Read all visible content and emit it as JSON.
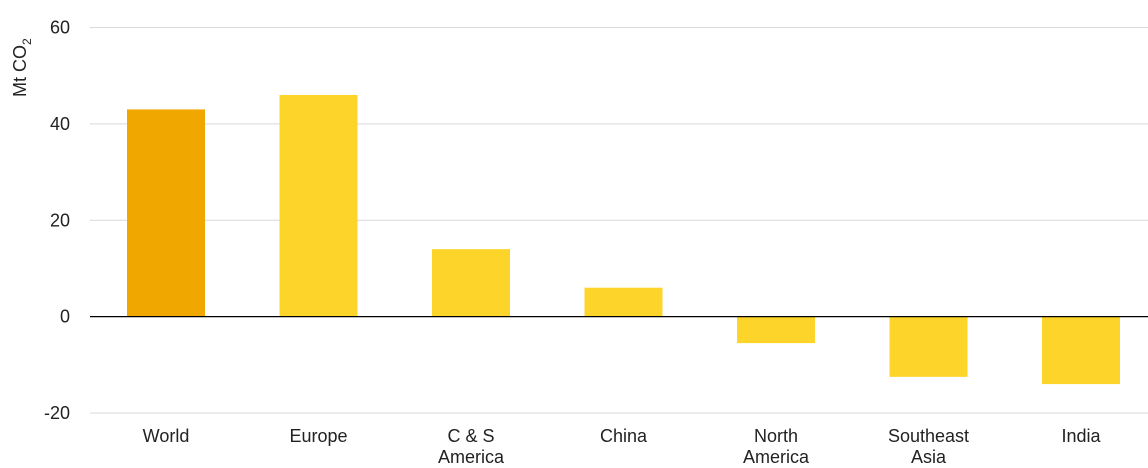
{
  "chart_data": {
    "type": "bar",
    "title": "",
    "xlabel": "",
    "ylabel": "Mt CO",
    "ylabel_subscript": "2",
    "ylim": [
      -20,
      60
    ],
    "yticks": [
      -20,
      0,
      20,
      40,
      60
    ],
    "grid": true,
    "categories": [
      [
        "World"
      ],
      [
        "Europe"
      ],
      [
        "C & S",
        "America"
      ],
      [
        "China"
      ],
      [
        "North",
        "America"
      ],
      [
        "Southeast",
        "Asia"
      ],
      [
        "India"
      ]
    ],
    "values": [
      43,
      46,
      14,
      6,
      -5.5,
      -12.5,
      -14
    ],
    "colors": [
      "#f0a800",
      "#fdd42a",
      "#fdd42a",
      "#fdd42a",
      "#fdd42a",
      "#fdd42a",
      "#fdd42a"
    ]
  }
}
